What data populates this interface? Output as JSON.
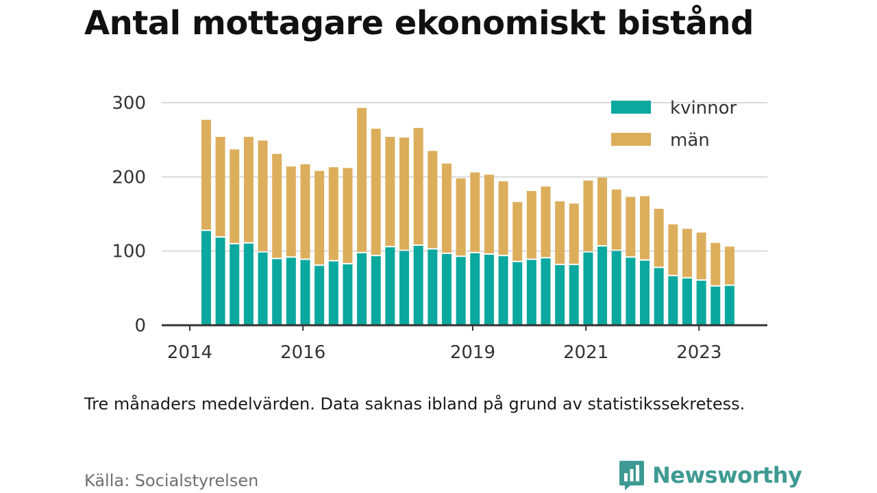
{
  "title": "Antal mottagare ekonomiskt bistånd",
  "caption": "Tre månaders medelvärden. Data saknas ibland på grund av statistikssekretess.",
  "source": "Källa: Socialstyrelsen",
  "brand": {
    "name": "Newsworthy",
    "icon": "newsworthy-logo-icon"
  },
  "colors": {
    "kvinnor": "#0aa89e",
    "man": "#dcae5c",
    "grid": "#d9d9d9",
    "axis": "#333333"
  },
  "chart_data": {
    "type": "bar",
    "stacked": true,
    "title": "Antal mottagare ekonomiskt bistånd",
    "xlabel": "",
    "ylabel": "",
    "ylim": [
      0,
      300
    ],
    "yticks": [
      "0",
      "100",
      "200",
      "300"
    ],
    "xticks": [
      {
        "label": "2014",
        "t": 2014.0
      },
      {
        "label": "2016",
        "t": 2016.0
      },
      {
        "label": "2019",
        "t": 2019.0
      },
      {
        "label": "2021",
        "t": 2021.0
      },
      {
        "label": "2023",
        "t": 2023.0
      }
    ],
    "x_range": [
      2013.6,
      2024.2
    ],
    "grid": true,
    "legend_position": "top-right",
    "legend": [
      "kvinnor",
      "män"
    ],
    "categories": [
      "2014 Q2",
      "2014 Q3",
      "2014 Q4",
      "2015 Q1",
      "2015 Q2",
      "2015 Q3",
      "2015 Q4",
      "2016 Q1",
      "2016 Q2",
      "2016 Q3",
      "2016 Q4",
      "2017 Q1",
      "2017 Q2",
      "2017 Q3",
      "2017 Q4",
      "2018 Q1",
      "2018 Q2",
      "2018 Q3",
      "2018 Q4",
      "2019 Q1",
      "2019 Q2",
      "2019 Q3",
      "2019 Q4",
      "2020 Q1",
      "2020 Q2",
      "2020 Q3",
      "2020 Q4",
      "2021 Q1",
      "2021 Q2",
      "2021 Q3",
      "2021 Q4",
      "2022 Q1",
      "2022 Q2",
      "2022 Q3",
      "2022 Q4",
      "2023 Q1",
      "2023 Q2",
      "2023 Q3"
    ],
    "x": [
      2014.29,
      2014.54,
      2014.79,
      2015.04,
      2015.29,
      2015.54,
      2015.79,
      2016.04,
      2016.29,
      2016.54,
      2016.79,
      2017.04,
      2017.29,
      2017.54,
      2017.79,
      2018.04,
      2018.29,
      2018.54,
      2018.79,
      2019.04,
      2019.29,
      2019.54,
      2019.79,
      2020.04,
      2020.29,
      2020.54,
      2020.79,
      2021.04,
      2021.29,
      2021.54,
      2021.79,
      2022.04,
      2022.29,
      2022.54,
      2022.79,
      2023.04,
      2023.29,
      2023.54
    ],
    "series": [
      {
        "name": "kvinnor",
        "values": [
          128,
          119,
          110,
          111,
          99,
          90,
          92,
          89,
          81,
          87,
          83,
          98,
          94,
          106,
          101,
          108,
          103,
          97,
          93,
          98,
          96,
          94,
          86,
          89,
          91,
          82,
          82,
          99,
          107,
          101,
          92,
          88,
          78,
          67,
          64,
          61,
          53,
          54
        ]
      },
      {
        "name": "män",
        "values": [
          149,
          135,
          127,
          143,
          150,
          141,
          122,
          128,
          127,
          126,
          129,
          195,
          171,
          148,
          152,
          158,
          132,
          121,
          105,
          108,
          107,
          100,
          80,
          92,
          96,
          85,
          82,
          96,
          92,
          82,
          81,
          86,
          79,
          69,
          66,
          64,
          58,
          52
        ]
      }
    ]
  }
}
